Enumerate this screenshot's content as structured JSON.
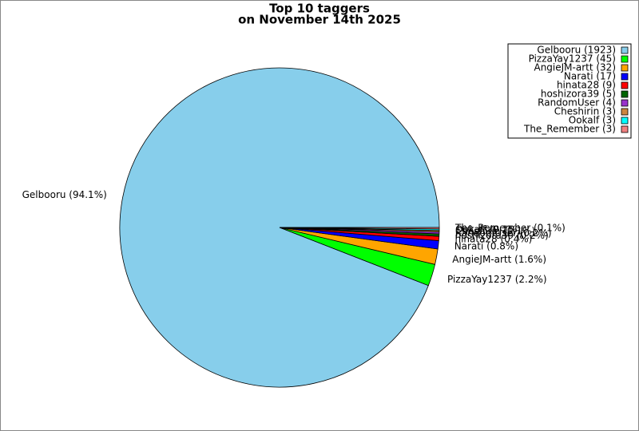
{
  "chart_data": {
    "type": "pie",
    "title": "Top 10 taggers",
    "subtitle": "on November 14th 2025",
    "values": [
      1923,
      45,
      32,
      17,
      9,
      5,
      4,
      3,
      3,
      3
    ],
    "value_labels": [
      "Gelbooru (94.1%)",
      "PizzaYay1237 (2.2%)",
      "AngieJM-artt (1.6%)",
      "Narati (0.8%)",
      "hinata28 (0.4%)",
      "hoshizora39 (0.2%)",
      "RandomUser (0.2%)",
      "Cheshirin (0.1%)",
      "Ookalf (0.1%)",
      "The_Remember (0.1%)"
    ],
    "legend_labels": [
      "Gelbooru (1923)",
      "PizzaYay1237 (45)",
      "AngieJM-artt (32)",
      "Narati (17)",
      "hinata28 (9)",
      "hoshizora39 (5)",
      "RandomUser (4)",
      "Cheshirin (3)",
      "Ookalf (3)",
      "The_Remember (3)"
    ],
    "colors": [
      "#87ceeb",
      "#00ff00",
      "#ffa500",
      "#0000ff",
      "#ff0000",
      "#006400",
      "#9932cc",
      "#cd853f",
      "#00ffff",
      "#f08080"
    ],
    "legend": "upper right"
  }
}
